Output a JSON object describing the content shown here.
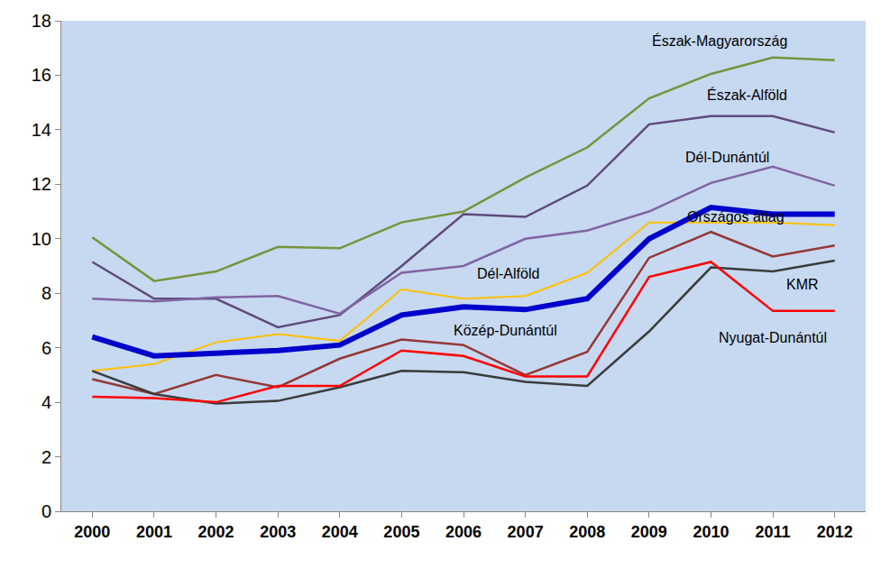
{
  "chart_data": {
    "type": "line",
    "x": [
      2000,
      2001,
      2002,
      2003,
      2004,
      2005,
      2006,
      2007,
      2008,
      2009,
      2010,
      2011,
      2012
    ],
    "xlim": [
      1999.5,
      2012.5
    ],
    "xticks": [
      2000,
      2001,
      2002,
      2003,
      2004,
      2005,
      2006,
      2007,
      2008,
      2009,
      2010,
      2011,
      2012
    ],
    "ylim": [
      0,
      18
    ],
    "yticks": [
      0,
      2,
      4,
      6,
      8,
      10,
      12,
      14,
      16,
      18
    ],
    "grid": false,
    "series": [
      {
        "name": "Észak-Magyarország",
        "color": "#77933c",
        "values": [
          10.05,
          8.45,
          8.8,
          9.7,
          9.65,
          10.6,
          11.0,
          12.25,
          13.35,
          15.15,
          16.05,
          16.65,
          16.55
        ]
      },
      {
        "name": "Észak-Alföld",
        "color": "#604a7b",
        "values": [
          9.15,
          7.8,
          7.8,
          6.75,
          7.2,
          9.0,
          10.9,
          10.8,
          11.95,
          14.2,
          14.5,
          14.5,
          13.9
        ]
      },
      {
        "name": "Dél-Dunántúl",
        "color": "#8064a2",
        "values": [
          7.8,
          7.7,
          7.85,
          7.9,
          7.25,
          8.75,
          9.0,
          10.0,
          10.3,
          11.0,
          12.05,
          12.65,
          11.95
        ]
      },
      {
        "name": "Országos átlag",
        "color": "#0000cc",
        "values": [
          6.4,
          5.7,
          5.8,
          5.9,
          6.1,
          7.2,
          7.5,
          7.4,
          7.8,
          10.0,
          11.15,
          10.9,
          10.9
        ]
      },
      {
        "name": "Dél-Alföld",
        "color": "#ffc000",
        "values": [
          5.15,
          5.4,
          6.2,
          6.5,
          6.25,
          8.15,
          7.8,
          7.9,
          8.75,
          10.6,
          10.6,
          10.6,
          10.5
        ]
      },
      {
        "name": "Közép-Dunántúl",
        "color": "#953735",
        "values": [
          4.85,
          4.3,
          5.0,
          4.55,
          5.6,
          6.3,
          6.1,
          5.0,
          5.85,
          9.3,
          10.25,
          9.35,
          9.75
        ]
      },
      {
        "name": "KMR",
        "color": "#3b3b3b",
        "values": [
          5.15,
          4.3,
          3.95,
          4.05,
          4.55,
          5.15,
          5.1,
          4.75,
          4.6,
          6.6,
          8.95,
          8.8,
          9.2
        ]
      },
      {
        "name": "Nyugat-Dunántúl",
        "color": "#ff0000",
        "values": [
          4.2,
          4.15,
          4.0,
          4.6,
          4.6,
          5.9,
          5.7,
          4.95,
          4.95,
          8.6,
          9.15,
          7.35,
          7.35
        ]
      }
    ]
  }
}
